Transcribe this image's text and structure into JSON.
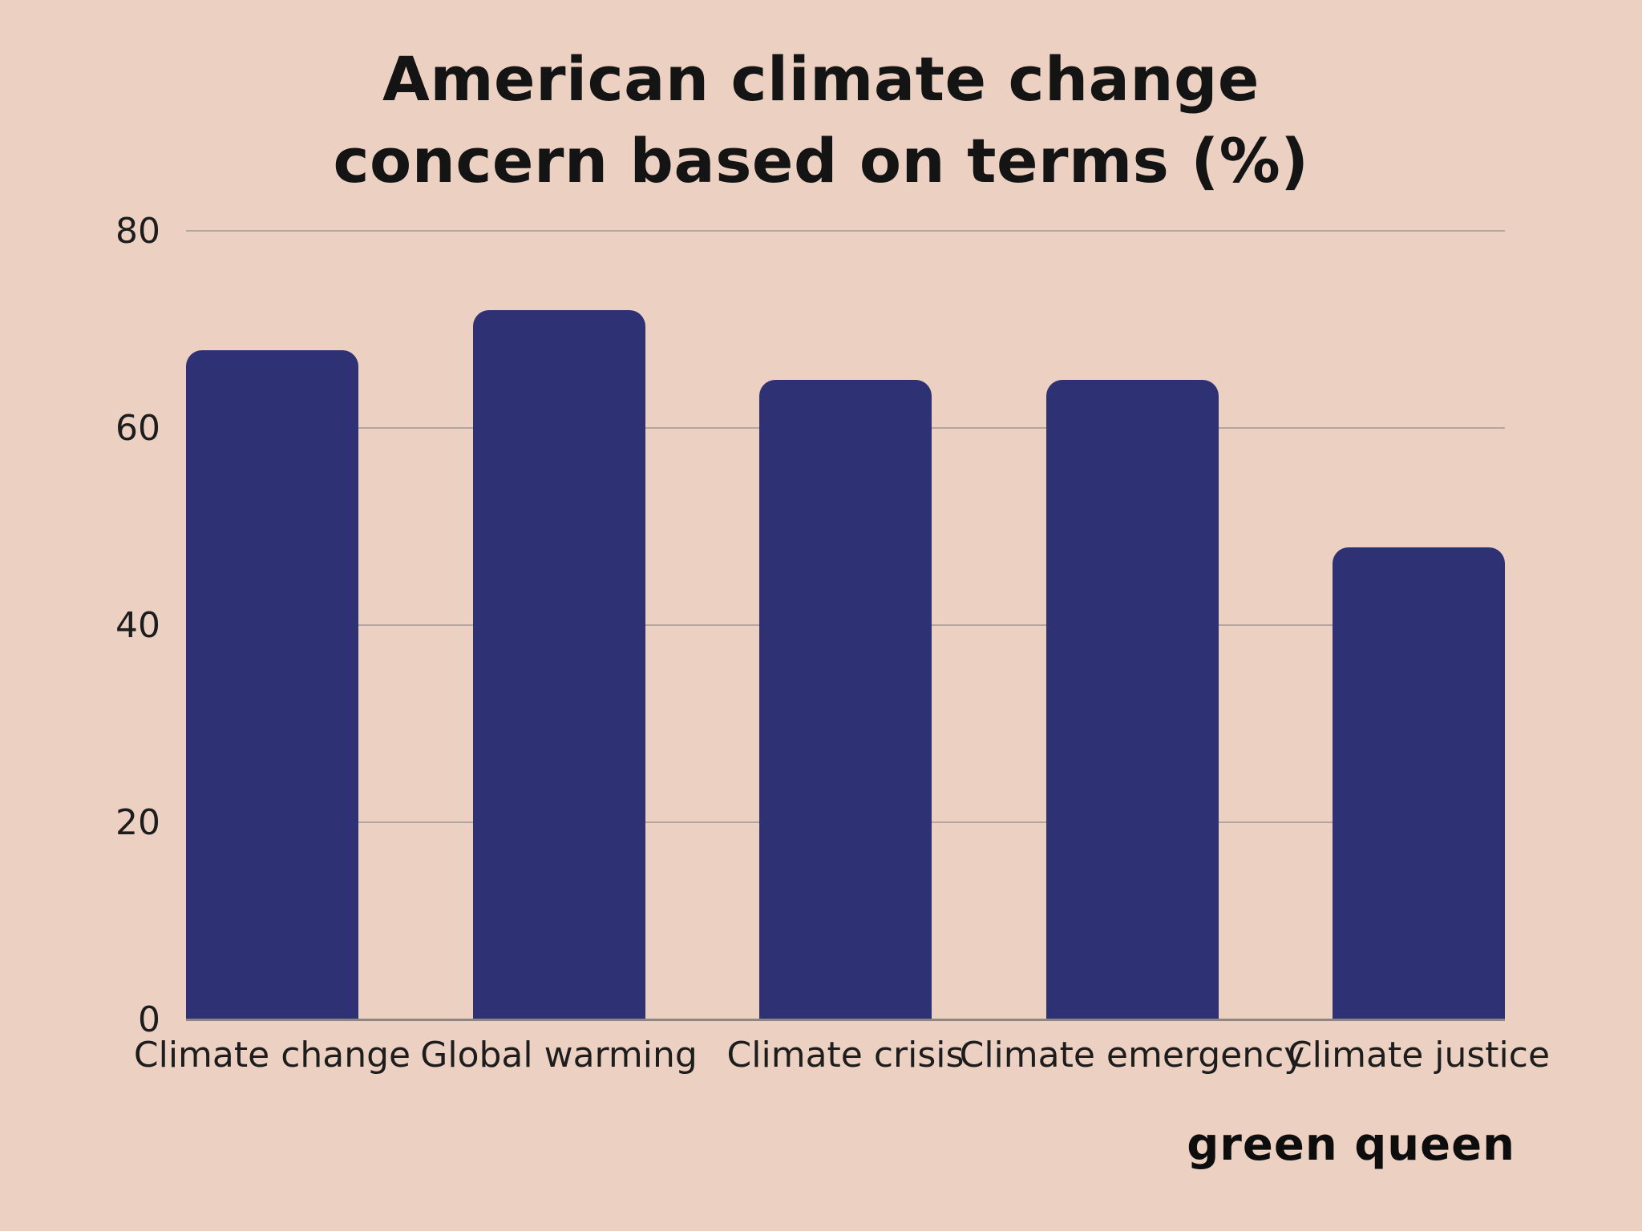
{
  "title": {
    "line1": "American climate change",
    "line2": "concern based on terms (%)"
  },
  "branding": "green queen",
  "chart_data": {
    "type": "bar",
    "title": "American climate change concern based on terms (%)",
    "categories": [
      "Climate change",
      "Global warming",
      "Climate crisis",
      "Climate emergency",
      "Climate justice"
    ],
    "values": [
      68,
      72,
      65,
      65,
      48
    ],
    "xlabel": "",
    "ylabel": "",
    "ylim": [
      0,
      80
    ],
    "yticks": [
      0,
      20,
      40,
      60,
      80
    ],
    "grid": true,
    "legend": false,
    "colors": {
      "bar": "#2e3173",
      "background": "#ecd1c3",
      "gridline": "#b3a6a0",
      "axis_line": "#8e8781",
      "text": "#141414"
    }
  }
}
